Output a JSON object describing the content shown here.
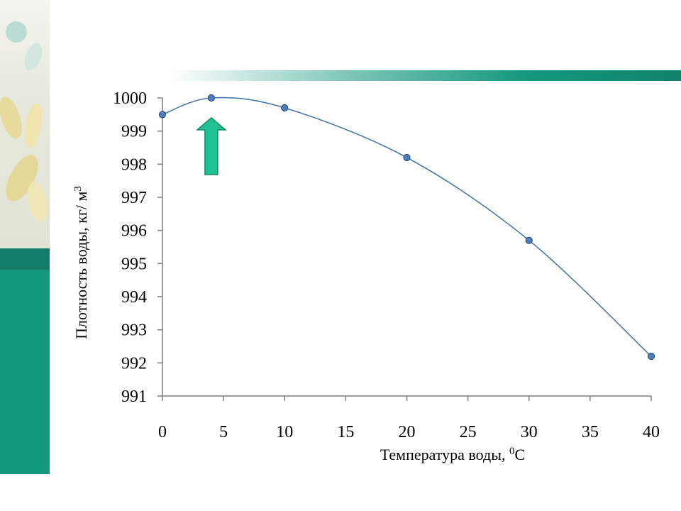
{
  "chart_data": {
    "type": "line",
    "xlabel": "Температура воды, ",
    "xlabel_sup": "0",
    "xlabel_unit": "C",
    "ylabel": "Плотность воды, кг/ м",
    "ylabel_sup": "3",
    "x_ticks": [
      "0",
      "5",
      "10",
      "15",
      "20",
      "25",
      "30",
      "35",
      "40"
    ],
    "y_ticks": [
      "991",
      "992",
      "993",
      "994",
      "995",
      "996",
      "997",
      "998",
      "999",
      "1000"
    ],
    "xlim": [
      0,
      40
    ],
    "ylim": [
      991,
      1000
    ],
    "grid": false,
    "series": [
      {
        "x": [
          0,
          4,
          10,
          20,
          30,
          40
        ],
        "y": [
          999.5,
          1000.0,
          999.7,
          998.2,
          995.7,
          992.2
        ]
      }
    ],
    "annotation": {
      "type": "arrow-up",
      "x": 4,
      "color": "#20c293"
    }
  }
}
